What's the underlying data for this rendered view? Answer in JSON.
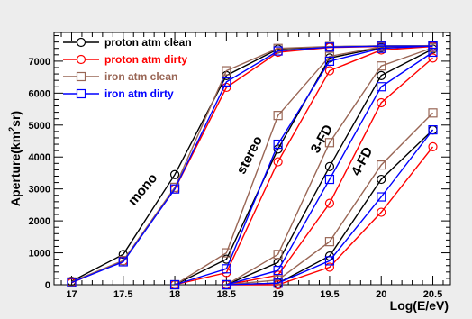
{
  "chart_data": {
    "type": "line",
    "xlabel": "Log(E/eV)",
    "ylabel": "Aperture(km",
    "ylabel_sup": "2",
    "ylabel_tail": "sr)",
    "xlim": [
      16.83,
      20.67
    ],
    "ylim": [
      0,
      7900
    ],
    "x_ticks": [
      "17",
      "17.5",
      "18",
      "18.5",
      "19",
      "19.5",
      "20",
      "20.5"
    ],
    "y_ticks": [
      "0",
      "1000",
      "2000",
      "3000",
      "4000",
      "5000",
      "6000",
      "7000"
    ],
    "legend_position": "top-left",
    "grid": false,
    "annotations": [
      {
        "text": "mono",
        "x": 17.72,
        "y": 2900,
        "angle": -50
      },
      {
        "text": "stereo",
        "x": 18.76,
        "y": 4000,
        "angle": -63
      },
      {
        "text": "3-FD",
        "x": 19.46,
        "y": 4500,
        "angle": -60
      },
      {
        "text": "4-FD",
        "x": 19.85,
        "y": 3800,
        "angle": -62
      }
    ],
    "series": [
      {
        "name": "proton atm clean",
        "color": "#000000",
        "marker": "circle",
        "curves": [
          {
            "x": [
              17,
              17.5,
              18,
              18.5,
              19,
              19.5,
              20,
              20.5
            ],
            "y": [
              110,
              950,
              3450,
              6550,
              7380,
              7450,
              7480,
              7480
            ]
          },
          {
            "x": [
              18,
              18.5,
              19,
              19.5,
              20,
              20.5
            ],
            "y": [
              0,
              800,
              4250,
              7100,
              7430,
              7480
            ]
          },
          {
            "x": [
              18.5,
              19,
              19.5,
              20,
              20.5
            ],
            "y": [
              0,
              700,
              3700,
              6550,
              7380
            ]
          },
          {
            "x": [
              18.5,
              19,
              19.5,
              20,
              20.5
            ],
            "y": [
              0,
              50,
              900,
              3300,
              4850
            ]
          }
        ]
      },
      {
        "name": "proton atm dirty",
        "color": "#ff0000",
        "marker": "circle",
        "curves": [
          {
            "x": [
              17,
              17.5,
              18,
              18.5,
              19,
              19.5,
              20,
              20.5
            ],
            "y": [
              60,
              750,
              3000,
              6180,
              7280,
              7430,
              7460,
              7470
            ]
          },
          {
            "x": [
              18,
              18.5,
              19,
              19.5,
              20,
              20.5
            ],
            "y": [
              0,
              380,
              3850,
              6700,
              7350,
              7460
            ]
          },
          {
            "x": [
              18.5,
              19,
              19.5,
              20,
              20.5
            ],
            "y": [
              0,
              300,
              2550,
              5700,
              7100
            ]
          },
          {
            "x": [
              18.5,
              19,
              19.5,
              20,
              20.5
            ],
            "y": [
              0,
              0,
              550,
              2270,
              4320
            ]
          }
        ]
      },
      {
        "name": "iron atm clean",
        "color": "#996655",
        "marker": "square",
        "curves": [
          {
            "x": [
              17,
              17.5,
              18,
              18.5,
              19,
              19.5,
              20,
              20.5
            ],
            "y": [
              90,
              760,
              3050,
              6700,
              7400,
              7460,
              7480,
              7480
            ]
          },
          {
            "x": [
              18,
              18.5,
              19,
              19.5,
              20,
              20.5
            ],
            "y": [
              0,
              1000,
              5300,
              7150,
              7450,
              7490
            ]
          },
          {
            "x": [
              18.5,
              19,
              19.5,
              20,
              20.5
            ],
            "y": [
              0,
              950,
              4450,
              6850,
              7420
            ]
          },
          {
            "x": [
              18.5,
              19,
              19.5,
              20,
              20.5
            ],
            "y": [
              0,
              150,
              1350,
              3750,
              5380
            ]
          }
        ]
      },
      {
        "name": "iron atm dirty",
        "color": "#0000ff",
        "marker": "square",
        "curves": [
          {
            "x": [
              17,
              17.5,
              18,
              18.5,
              19,
              19.5,
              20,
              20.5
            ],
            "y": [
              70,
              720,
              3000,
              6350,
              7320,
              7440,
              7470,
              7470
            ]
          },
          {
            "x": [
              18,
              18.5,
              19,
              19.5,
              20,
              20.5
            ],
            "y": [
              0,
              500,
              4400,
              7000,
              7400,
              7480
            ]
          },
          {
            "x": [
              18.5,
              19,
              19.5,
              20,
              20.5
            ],
            "y": [
              0,
              450,
              3300,
              6200,
              7280
            ]
          },
          {
            "x": [
              18.5,
              19,
              19.5,
              20,
              20.5
            ],
            "y": [
              0,
              50,
              750,
              2750,
              4850
            ]
          }
        ]
      }
    ]
  }
}
